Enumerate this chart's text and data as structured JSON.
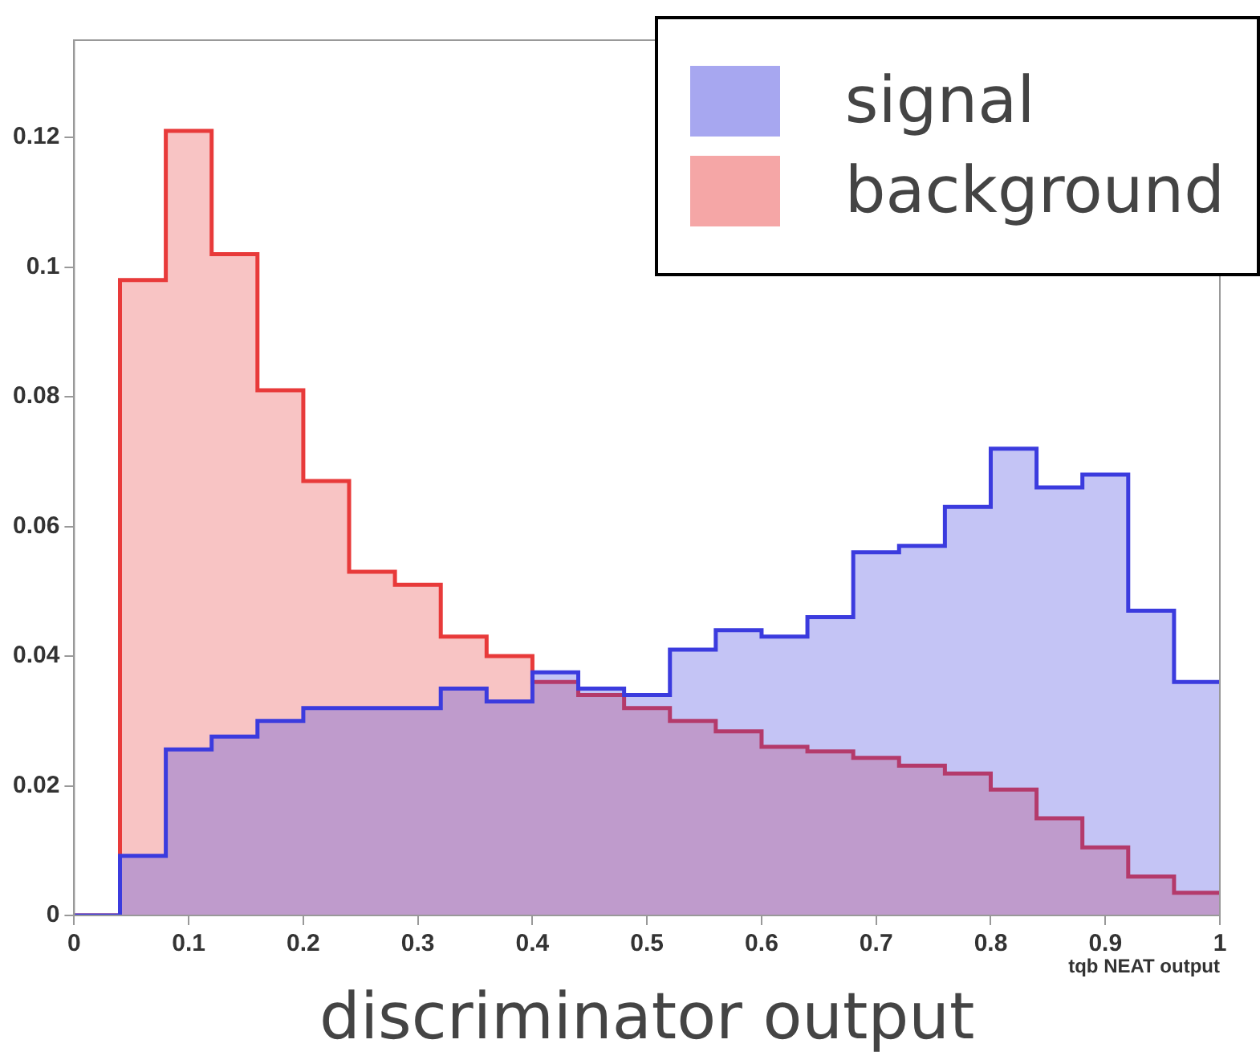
{
  "chart_data": {
    "type": "histogram",
    "xlabel": "discriminator output",
    "annotations": [
      "tqb NEAT output"
    ],
    "bins": [
      0,
      0.04,
      0.08,
      0.12,
      0.16,
      0.2,
      0.24,
      0.28,
      0.32,
      0.36,
      0.4,
      0.44,
      0.48,
      0.52,
      0.56,
      0.6,
      0.64,
      0.68,
      0.72,
      0.76,
      0.8,
      0.84,
      0.88,
      0.92,
      0.96,
      1
    ],
    "series": [
      {
        "name": "signal",
        "color": "#3b3bde",
        "values": [
          0,
          0.0092,
          0.0256,
          0.0276,
          0.03,
          0.032,
          0.032,
          0.032,
          0.035,
          0.033,
          0.0375,
          0.035,
          0.034,
          0.041,
          0.044,
          0.043,
          0.046,
          0.056,
          0.057,
          0.063,
          0.072,
          0.066,
          0.068,
          0.047,
          0.036
        ]
      },
      {
        "name": "background",
        "color": "#e83a3a",
        "values": [
          0,
          0.098,
          0.121,
          0.102,
          0.081,
          0.067,
          0.053,
          0.051,
          0.043,
          0.04,
          0.036,
          0.034,
          0.032,
          0.03,
          0.0284,
          0.026,
          0.0253,
          0.0243,
          0.0231,
          0.0219,
          0.0194,
          0.015,
          0.0105,
          0.006,
          0.0035
        ]
      }
    ],
    "xlim": [
      0,
      1
    ],
    "ylim": [
      0,
      0.135
    ],
    "xticks": [
      0,
      0.1,
      0.2,
      0.3,
      0.4,
      0.5,
      0.6,
      0.7,
      0.8,
      0.9,
      1
    ],
    "yticks": [
      0,
      0.02,
      0.04,
      0.06,
      0.08,
      0.1,
      0.12
    ],
    "legend": "top right"
  }
}
